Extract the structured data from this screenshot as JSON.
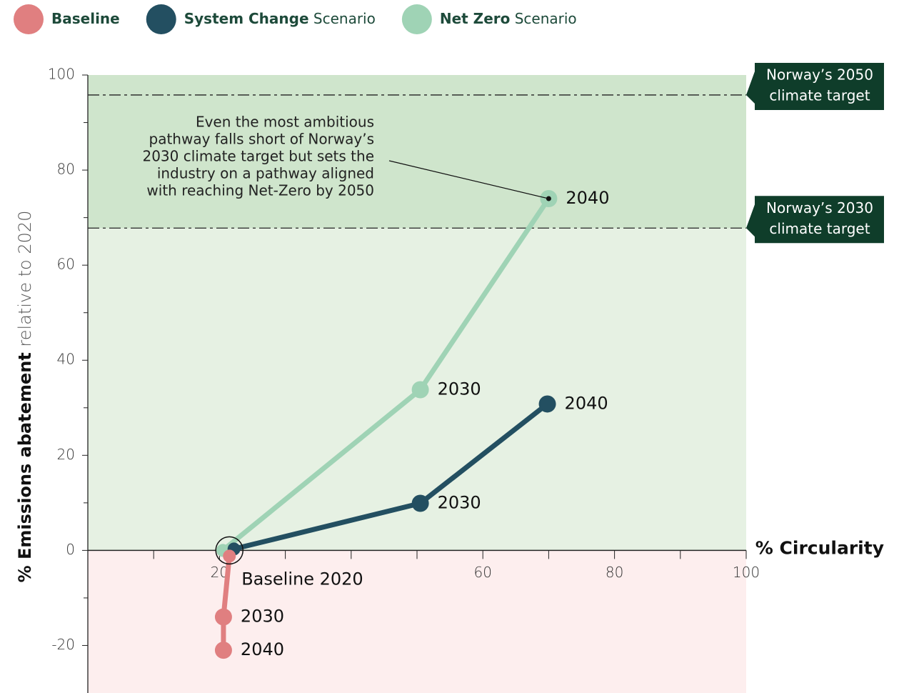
{
  "chart_data": {
    "type": "line",
    "x_label": "% Circularity",
    "y_label_bold": "% Emissions abatement",
    "y_label_rest": "relative to 2020",
    "xlim": [
      0,
      100
    ],
    "ylim": [
      -30,
      100
    ],
    "xticks": [
      20,
      60,
      80,
      100
    ],
    "xminor_ticks": [
      10,
      30,
      40,
      50,
      70,
      90
    ],
    "yticks": [
      -20,
      0,
      20,
      40,
      60,
      80,
      100
    ],
    "yminor_ticks": [
      -10,
      10,
      30,
      50,
      70,
      90
    ],
    "series": [
      {
        "name": "Baseline",
        "color": "#e07f80",
        "x": [
          21.5,
          20.6,
          20.6
        ],
        "values": [
          -1.2,
          -14,
          -21
        ],
        "point_labels": [
          "Baseline 2020",
          "2030",
          "2040"
        ]
      },
      {
        "name": "System Change",
        "legend_suffix": "Scenario",
        "color": "#234f61",
        "x": [
          22.2,
          50.5,
          69.8
        ],
        "values": [
          0.3,
          9.9,
          30.8
        ],
        "point_labels": [
          null,
          "2030",
          "2040"
        ]
      },
      {
        "name": "Net Zero",
        "legend_suffix": "Scenario",
        "color": "#9fd3b5",
        "x": [
          20.5,
          50.5,
          70
        ],
        "values": [
          0,
          33.8,
          74
        ],
        "point_labels": [
          null,
          "2030",
          "2040"
        ]
      }
    ],
    "targets": [
      {
        "label_lines": [
          "Norway’s 2050",
          "climate target"
        ],
        "value": 95.8
      },
      {
        "label_lines": [
          "Norway’s 2030",
          "climate target"
        ],
        "value": 67.8
      }
    ],
    "annotation_lines": [
      "Even the most ambitious",
      "pathway falls short of Norway’s",
      "2030 climate target but sets the",
      "industry on a pathway aligned",
      "with reaching Net-Zero by 2050"
    ]
  }
}
